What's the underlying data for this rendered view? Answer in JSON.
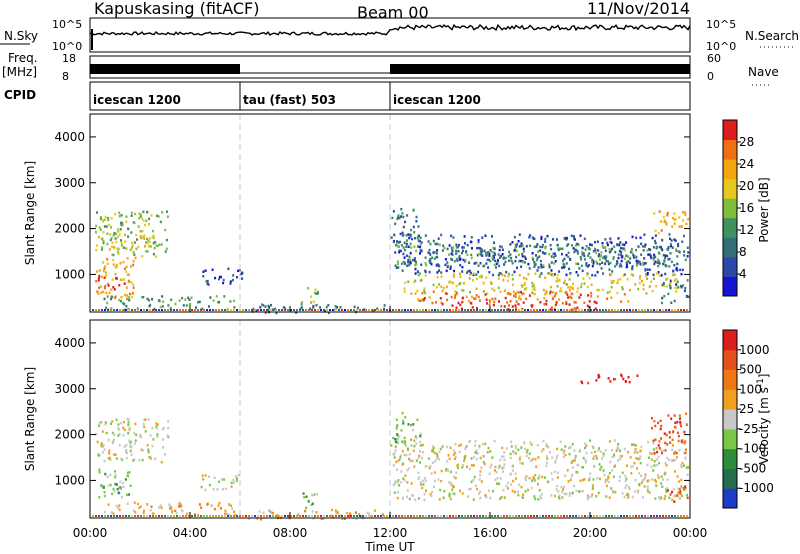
{
  "header": {
    "station": "Kapuskasing (fitACF)",
    "beam": "Beam 00",
    "date": "11/Nov/2014"
  },
  "ctrl": {
    "nsky_label": "N.Sky",
    "nsky_ticks": [
      "10^5",
      "10^0"
    ],
    "nsearch_label": "N.Search",
    "nsearch_ticks": [
      "10^5",
      "10^0"
    ],
    "freq_label": "Freq.",
    "freq_unit": "[MHz]",
    "freq_ticks": [
      "18",
      "8"
    ],
    "nave_label": "Nave",
    "nave_ticks": [
      "60",
      "0"
    ],
    "cpid_label": "CPID",
    "cpid_segments": [
      {
        "label": "icescan 1200",
        "start": 0,
        "end": 6
      },
      {
        "label": "tau (fast) 503",
        "start": 6,
        "end": 12
      },
      {
        "label": "icescan 1200",
        "start": 12,
        "end": 24
      }
    ]
  },
  "chart_data": [
    {
      "type": "heatmap",
      "name": "power",
      "ylabel": "Slant Range [km]",
      "colorbar_label": "Power [dB]",
      "yticks": [
        "4000",
        "3000",
        "2000",
        "1000"
      ],
      "ytick_values": [
        4000,
        3000,
        2000,
        1000
      ],
      "ylim": [
        180,
        4500
      ],
      "xlim": [
        0,
        24
      ],
      "colorbar_ticks": [
        "28",
        "24",
        "20",
        "16",
        "12",
        "8",
        "4"
      ],
      "colorbar_colors": [
        "#1414d2",
        "#2a49a8",
        "#336f78",
        "#3f9160",
        "#7fbe3c",
        "#e6c81e",
        "#f5a50f",
        "#f06e14",
        "#dc1e1e"
      ],
      "cells": [
        {
          "t0": 0.2,
          "t1": 3.1,
          "r0": 1400,
          "r1": 2400,
          "c": 4
        },
        {
          "t0": 0.2,
          "t1": 1.8,
          "r0": 500,
          "r1": 1400,
          "c": 6
        },
        {
          "t0": 0.3,
          "t1": 1.4,
          "r0": 700,
          "r1": 1000,
          "c": 8
        },
        {
          "t0": 0.3,
          "t1": 2.6,
          "r0": 1550,
          "r1": 1900,
          "c": 5
        },
        {
          "t0": 4.3,
          "t1": 6.1,
          "r0": 800,
          "r1": 1150,
          "c": 1
        },
        {
          "t0": 0.5,
          "t1": 5.8,
          "r0": 250,
          "r1": 550,
          "c": 3
        },
        {
          "t0": 6.3,
          "t1": 11.8,
          "r0": 180,
          "r1": 380,
          "c": 2
        },
        {
          "t0": 8.4,
          "t1": 9.1,
          "r0": 400,
          "r1": 750,
          "c": 4
        },
        {
          "t0": 12.1,
          "t1": 23.9,
          "r0": 1000,
          "r1": 1900,
          "c": 1
        },
        {
          "t0": 12.2,
          "t1": 23.8,
          "r0": 1200,
          "r1": 1700,
          "c": 3
        },
        {
          "t0": 12.5,
          "t1": 23.5,
          "r0": 600,
          "r1": 1050,
          "c": 5
        },
        {
          "t0": 13.0,
          "t1": 21.5,
          "r0": 400,
          "r1": 650,
          "c": 7
        },
        {
          "t0": 14.0,
          "t1": 20.5,
          "r0": 250,
          "r1": 450,
          "c": 8
        },
        {
          "t0": 12.0,
          "t1": 13.2,
          "r0": 1700,
          "r1": 2500,
          "c": 2
        },
        {
          "t0": 22.5,
          "t1": 23.9,
          "r0": 1900,
          "r1": 2400,
          "c": 6
        },
        {
          "t0": 22.8,
          "t1": 23.9,
          "r0": 400,
          "r1": 900,
          "c": 2
        }
      ]
    },
    {
      "type": "heatmap",
      "name": "velocity",
      "ylabel": "Slant Range [km]",
      "xlabel": "Time UT",
      "xticks": [
        "00:00",
        "04:00",
        "08:00",
        "12:00",
        "16:00",
        "20:00",
        "00:00"
      ],
      "xtick_values": [
        0,
        4,
        8,
        12,
        16,
        20,
        24
      ],
      "yticks": [
        "4000",
        "3000",
        "2000",
        "1000"
      ],
      "ytick_values": [
        4000,
        3000,
        2000,
        1000
      ],
      "ylim": [
        180,
        4500
      ],
      "xlim": [
        0,
        24
      ],
      "colorbar_label": "Velocity [m s^-1]",
      "colorbar_ticks": [
        "1000",
        "500",
        "100",
        "25",
        "-25",
        "-100",
        "-500",
        "-1000"
      ],
      "colorbar_colors": [
        "#1e3cc8",
        "#236e50",
        "#2f8c3a",
        "#78c846",
        "#c8c8c8",
        "#f0a01e",
        "#f07814",
        "#e6501e",
        "#dc1e1e"
      ],
      "cells": [
        {
          "t0": 0.2,
          "t1": 3.1,
          "r0": 1400,
          "r1": 2400,
          "c": 4
        },
        {
          "t0": 0.3,
          "t1": 1.6,
          "r0": 650,
          "r1": 1300,
          "c": 3
        },
        {
          "t0": 0.4,
          "t1": 1.2,
          "r0": 750,
          "r1": 950,
          "c": 2
        },
        {
          "t0": 4.4,
          "t1": 6.0,
          "r0": 800,
          "r1": 1150,
          "c": 4
        },
        {
          "t0": 0.5,
          "t1": 5.8,
          "r0": 250,
          "r1": 550,
          "c": 5
        },
        {
          "t0": 6.3,
          "t1": 11.8,
          "r0": 180,
          "r1": 380,
          "c": 5
        },
        {
          "t0": 8.4,
          "t1": 9.1,
          "r0": 400,
          "r1": 750,
          "c": 3
        },
        {
          "t0": 12.1,
          "t1": 23.9,
          "r0": 600,
          "r1": 1900,
          "c": 4
        },
        {
          "t0": 12.0,
          "t1": 13.2,
          "r0": 1700,
          "r1": 2500,
          "c": 3
        },
        {
          "t0": 22.4,
          "t1": 23.9,
          "r0": 1600,
          "r1": 2500,
          "c": 7
        },
        {
          "t0": 23.0,
          "t1": 23.9,
          "r0": 550,
          "r1": 900,
          "c": 7
        },
        {
          "t0": 19.5,
          "t1": 22.0,
          "r0": 3150,
          "r1": 3350,
          "c": 8
        }
      ]
    }
  ]
}
